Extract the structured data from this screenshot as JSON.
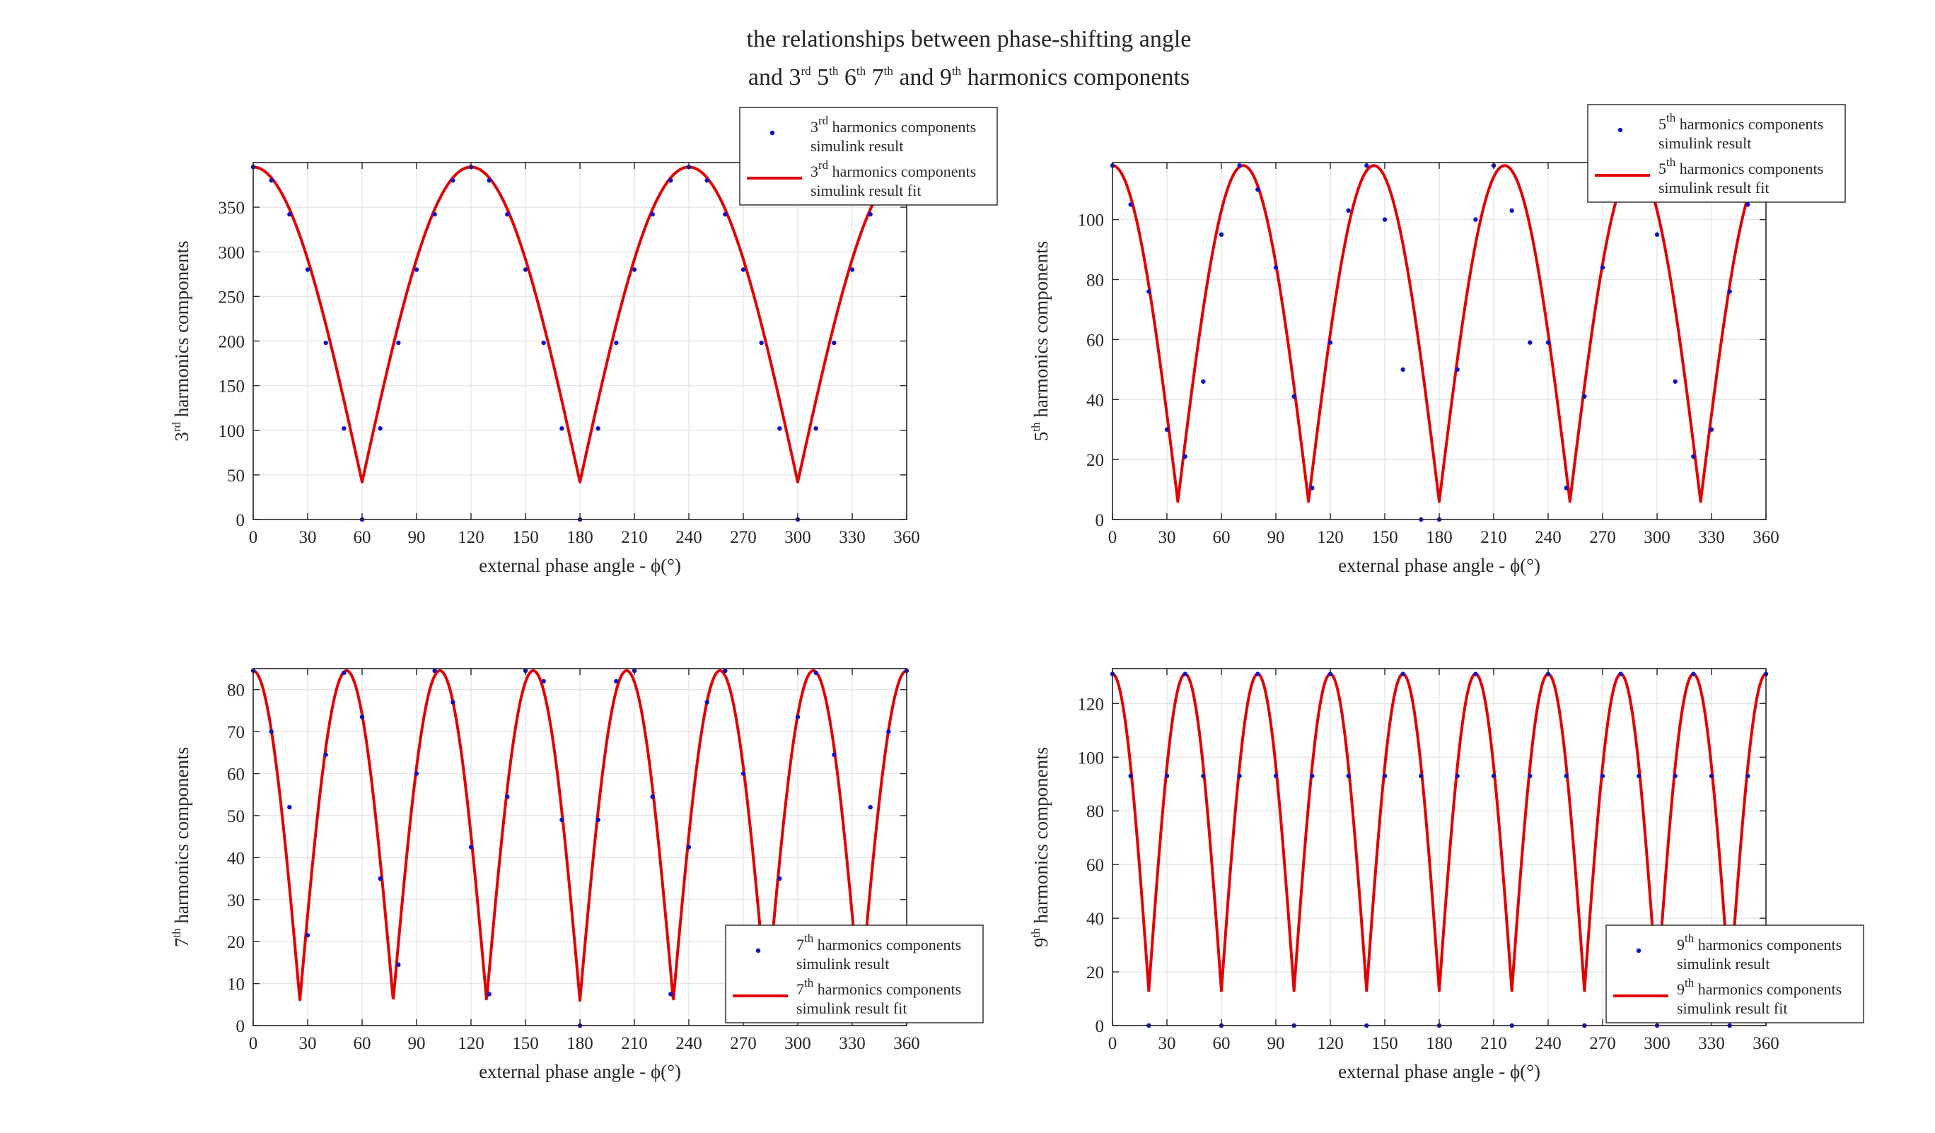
{
  "figure": {
    "title_line1": "the relationships between phase-shifting angle",
    "title_line2_parts": [
      "and 3",
      "rd",
      " 5",
      "th",
      " 6",
      "th",
      " 7",
      "th",
      " and 9",
      "th",
      " harmonics components"
    ]
  },
  "colors": {
    "fit": "#e30000",
    "sim": "#1010c8",
    "grid": "#e4e4e4",
    "axis": "#262626"
  },
  "chart_data": [
    {
      "type": "line",
      "harmonic": 3,
      "ordinal": "rd",
      "xlabel": "external phase angle - ϕ(°)",
      "ylabel_pre": "3",
      "ylabel_sup": "rd",
      "ylabel_post": " harmonics components",
      "xlim": [
        0,
        360
      ],
      "ylim": [
        0,
        400
      ],
      "xticks": [
        0,
        30,
        60,
        90,
        120,
        150,
        180,
        210,
        240,
        270,
        300,
        330,
        360
      ],
      "yticks": [
        0,
        50,
        100,
        150,
        200,
        250,
        300,
        350
      ],
      "legend_position": "top-right",
      "fit": {
        "amplitude": 395,
        "minimum": 42
      },
      "series": [
        {
          "name": "3rd harmonics components simulink result",
          "legend_pre": "3",
          "legend_sup": "rd",
          "legend_post": " harmonics components",
          "legend_line2": "simulink result",
          "x": [
            0,
            10,
            20,
            30,
            40,
            50,
            60,
            70,
            80,
            90,
            100,
            110,
            120,
            130,
            140,
            150,
            160,
            170,
            180,
            190,
            200,
            210,
            220,
            230,
            240,
            250,
            260,
            270,
            280,
            290,
            300,
            310,
            320,
            330,
            340,
            350,
            360
          ],
          "y": [
            395,
            380,
            342,
            280,
            198,
            102,
            0,
            102,
            198,
            280,
            342,
            380,
            395,
            380,
            342,
            280,
            198,
            102,
            0,
            102,
            198,
            280,
            342,
            380,
            395,
            380,
            342,
            280,
            198,
            102,
            0,
            102,
            198,
            280,
            342,
            380,
            395
          ]
        },
        {
          "name": "3rd harmonics components simulink result fit",
          "legend_pre": "3",
          "legend_sup": "rd",
          "legend_post": " harmonics components",
          "legend_line2": "simulink result fit"
        }
      ]
    },
    {
      "type": "line",
      "harmonic": 5,
      "ordinal": "th",
      "xlabel": "external phase angle - ϕ(°)",
      "ylabel_pre": "5",
      "ylabel_sup": "th",
      "ylabel_post": " harmonics components",
      "xlim": [
        0,
        360
      ],
      "ylim": [
        0,
        119
      ],
      "xticks": [
        0,
        30,
        60,
        90,
        120,
        150,
        180,
        210,
        240,
        270,
        300,
        330,
        360
      ],
      "yticks": [
        0,
        20,
        40,
        60,
        80,
        100
      ],
      "legend_position": "top-right",
      "fit": {
        "amplitude": 118,
        "minimum": 6
      },
      "series": [
        {
          "name": "5th harmonics components simulink result",
          "legend_pre": "5",
          "legend_sup": "th",
          "legend_post": " harmonics components",
          "legend_line2": "simulink result",
          "x": [
            0,
            10,
            20,
            30,
            40,
            50,
            60,
            70,
            80,
            90,
            100,
            110,
            120,
            130,
            140,
            150,
            160,
            170,
            180,
            190,
            200,
            210,
            220,
            230,
            240,
            250,
            260,
            270,
            280,
            290,
            300,
            310,
            320,
            330,
            340,
            350,
            360
          ],
          "y": [
            118,
            105,
            76,
            30,
            21,
            46,
            95,
            118,
            110,
            84,
            41,
            10.5,
            59,
            103,
            118,
            100,
            50,
            0,
            0,
            50,
            100,
            118,
            103,
            59,
            59,
            10.5,
            41,
            84,
            110,
            118,
            95,
            46,
            21,
            30,
            76,
            105,
            118
          ]
        },
        {
          "name": "5th harmonics components simulink result fit",
          "legend_pre": "5",
          "legend_sup": "th",
          "legend_post": " harmonics components",
          "legend_line2": "simulink result fit"
        }
      ]
    },
    {
      "type": "line",
      "harmonic": 7,
      "ordinal": "th",
      "xlabel": "external phase angle - ϕ(°)",
      "ylabel_pre": "7",
      "ylabel_sup": "th",
      "ylabel_post": " harmonics components",
      "xlim": [
        0,
        360
      ],
      "ylim": [
        0,
        85
      ],
      "xticks": [
        0,
        30,
        60,
        90,
        120,
        150,
        180,
        210,
        240,
        270,
        300,
        330,
        360
      ],
      "yticks": [
        0,
        10,
        20,
        30,
        40,
        50,
        60,
        70,
        80
      ],
      "legend_position": "bottom-right",
      "fit": {
        "amplitude": 84.5,
        "minimum": 6
      },
      "series": [
        {
          "name": "7th harmonics components simulink result",
          "legend_pre": "7",
          "legend_sup": "th",
          "legend_post": " harmonics components",
          "legend_line2": "simulink result",
          "x": [
            0,
            10,
            20,
            30,
            40,
            50,
            60,
            70,
            80,
            90,
            100,
            110,
            120,
            130,
            140,
            150,
            160,
            170,
            180,
            190,
            200,
            210,
            220,
            230,
            240,
            250,
            260,
            270,
            280,
            290,
            300,
            310,
            320,
            330,
            340,
            350,
            360
          ],
          "y": [
            84.5,
            70,
            52,
            21.5,
            64.5,
            84,
            73.5,
            35,
            14.5,
            60,
            84.5,
            77,
            42.5,
            7.5,
            54.5,
            84.5,
            82,
            49,
            0,
            49,
            82,
            84.5,
            54.5,
            7.5,
            42.5,
            77,
            84.5,
            60,
            14.5,
            35,
            73.5,
            84,
            64.5,
            21.5,
            52,
            70,
            84.5
          ]
        },
        {
          "name": "7th harmonics components simulink result fit",
          "legend_pre": "7",
          "legend_sup": "th",
          "legend_post": " harmonics components",
          "legend_line2": "simulink result fit"
        }
      ]
    },
    {
      "type": "line",
      "harmonic": 9,
      "ordinal": "th",
      "xlabel": "external phase angle - ϕ(°)",
      "ylabel_pre": "9",
      "ylabel_sup": "th",
      "ylabel_post": " harmonics components",
      "xlim": [
        0,
        360
      ],
      "ylim": [
        0,
        133
      ],
      "xticks": [
        0,
        30,
        60,
        90,
        120,
        150,
        180,
        210,
        240,
        270,
        300,
        330,
        360
      ],
      "yticks": [
        0,
        20,
        40,
        60,
        80,
        100,
        120
      ],
      "legend_position": "bottom-right",
      "fit": {
        "amplitude": 131,
        "minimum": 13
      },
      "series": [
        {
          "name": "9th harmonics components simulink result",
          "legend_pre": "9",
          "legend_sup": "th",
          "legend_post": " harmonics components",
          "legend_line2": "simulink result",
          "x": [
            0,
            10,
            20,
            30,
            40,
            50,
            60,
            70,
            80,
            90,
            100,
            110,
            120,
            130,
            140,
            150,
            160,
            170,
            180,
            190,
            200,
            210,
            220,
            230,
            240,
            250,
            260,
            270,
            280,
            290,
            300,
            310,
            320,
            330,
            340,
            350,
            360
          ],
          "y": [
            131,
            93,
            0,
            93,
            131,
            93,
            0,
            93,
            131,
            93,
            0,
            93,
            131,
            93,
            0,
            93,
            131,
            93,
            0,
            93,
            131,
            93,
            0,
            93,
            131,
            93,
            0,
            93,
            131,
            93,
            0,
            93,
            131,
            93,
            0,
            93,
            131
          ]
        },
        {
          "name": "9th harmonics components simulink result fit",
          "legend_pre": "9",
          "legend_sup": "th",
          "legend_post": " harmonics components",
          "legend_line2": "simulink result fit"
        }
      ]
    }
  ]
}
